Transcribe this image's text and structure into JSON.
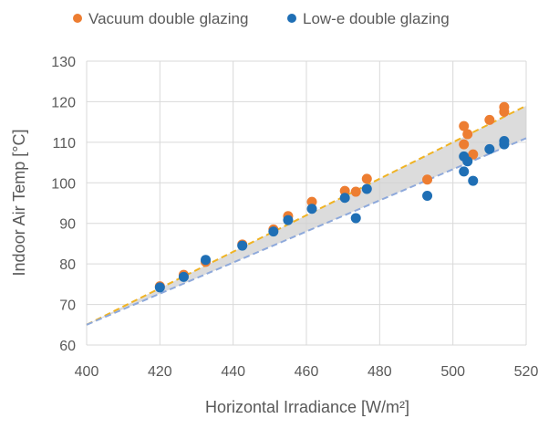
{
  "chart_data": {
    "type": "scatter",
    "title": "",
    "xlabel": "Horizontal Irradiance [W/m²]",
    "ylabel": "Indoor Air Temp [°C]",
    "xlim": [
      400,
      520
    ],
    "ylim": [
      60,
      130
    ],
    "x_ticks": [
      "400",
      "420",
      "440",
      "460",
      "480",
      "500",
      "520"
    ],
    "y_ticks": [
      "60",
      "70",
      "80",
      "90",
      "100",
      "110",
      "120",
      "130"
    ],
    "grid": true,
    "legend_position": "top",
    "series": [
      {
        "name": "Vacuum double glazing",
        "color": "#ED7D31",
        "trendline": [
          [
            400,
            65
          ],
          [
            520,
            119
          ]
        ],
        "trendline_color": "#F0B323",
        "points": [
          [
            420,
            74.5
          ],
          [
            426.5,
            77.3
          ],
          [
            432.5,
            80.5
          ],
          [
            442.5,
            84.8
          ],
          [
            451,
            88.5
          ],
          [
            455,
            91.8
          ],
          [
            461.5,
            95.3
          ],
          [
            470.5,
            98
          ],
          [
            473.5,
            97.8
          ],
          [
            476.5,
            101
          ],
          [
            493,
            100.8
          ],
          [
            503,
            114
          ],
          [
            503,
            109.5
          ],
          [
            504,
            112
          ],
          [
            505.5,
            107
          ],
          [
            510,
            115.5
          ],
          [
            514,
            117.5
          ],
          [
            514,
            118.7
          ]
        ]
      },
      {
        "name": "Low-e double glazing",
        "color": "#1F6FB5",
        "trendline": [
          [
            400,
            65
          ],
          [
            520,
            111
          ]
        ],
        "trendline_color": "#8EA9DB",
        "points": [
          [
            420,
            74.2
          ],
          [
            426.5,
            76.8
          ],
          [
            432.5,
            81
          ],
          [
            442.5,
            84.5
          ],
          [
            451,
            88
          ],
          [
            455,
            90.8
          ],
          [
            461.5,
            93.6
          ],
          [
            470.5,
            96.3
          ],
          [
            473.5,
            91.3
          ],
          [
            476.5,
            98.5
          ],
          [
            493,
            96.8
          ],
          [
            503,
            106.5
          ],
          [
            503,
            102.8
          ],
          [
            504,
            105.3
          ],
          [
            505.5,
            100.5
          ],
          [
            510,
            108.3
          ],
          [
            514,
            109.5
          ],
          [
            514,
            110.3
          ]
        ]
      }
    ]
  }
}
